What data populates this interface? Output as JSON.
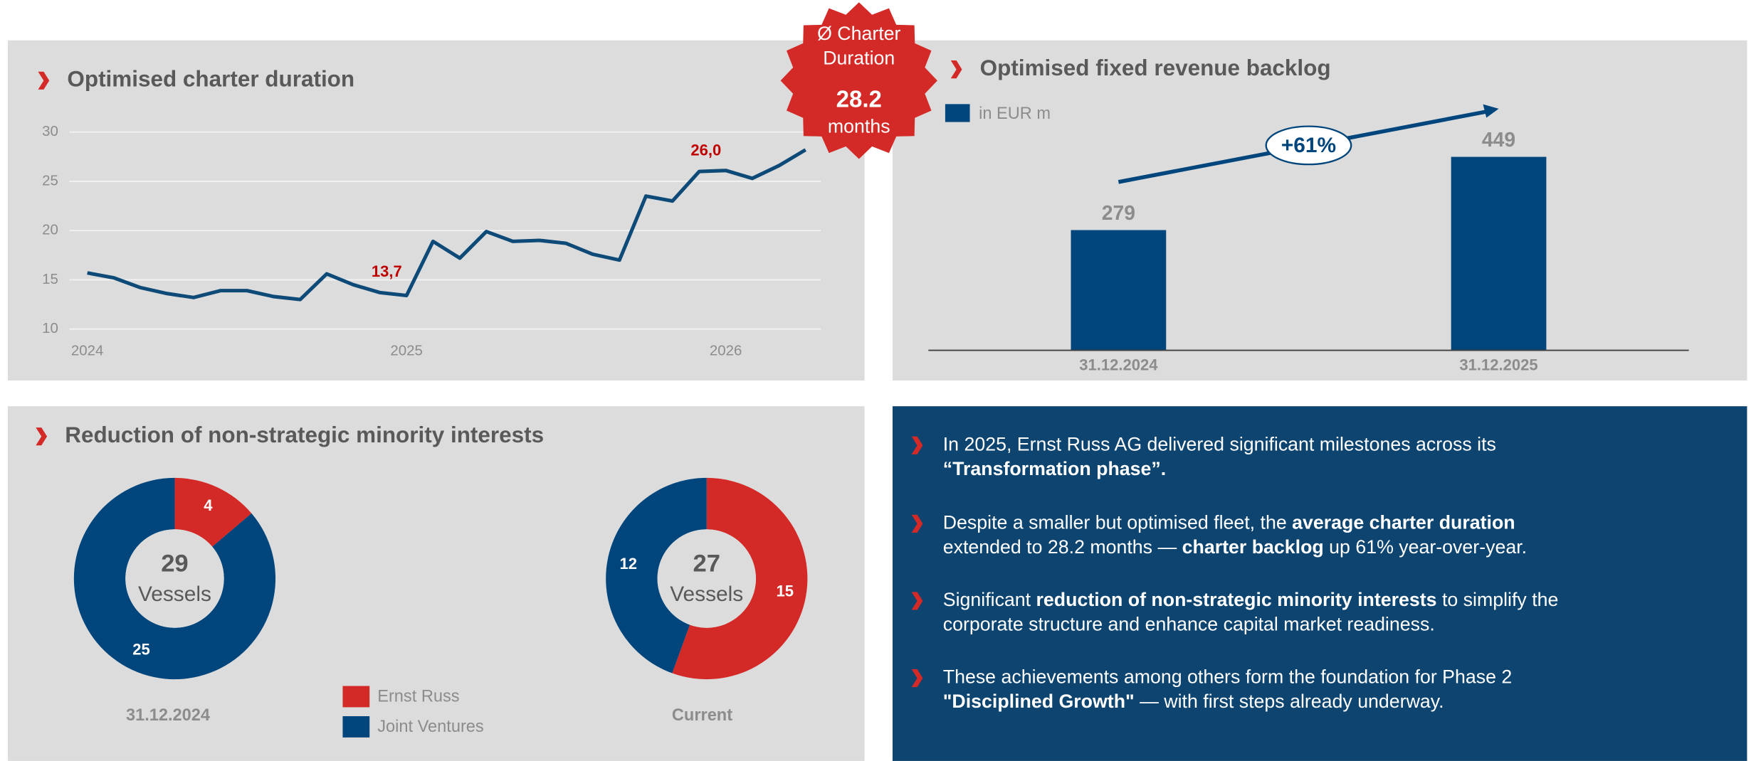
{
  "chart_data": [
    {
      "type": "line",
      "title": "Optimised charter duration",
      "x": [
        2024,
        2024.083,
        2024.167,
        2024.25,
        2024.333,
        2024.417,
        2024.5,
        2024.583,
        2024.667,
        2024.75,
        2024.833,
        2024.917,
        2025,
        2025.083,
        2025.167,
        2025.25,
        2025.333,
        2025.417,
        2025.5,
        2025.583,
        2025.667,
        2025.75,
        2025.833,
        2025.917,
        2026,
        2026.083,
        2026.167,
        2026.25
      ],
      "values": [
        15.7,
        15.2,
        14.2,
        13.6,
        13.2,
        13.9,
        13.9,
        13.3,
        13.0,
        15.6,
        14.5,
        13.7,
        13.4,
        18.9,
        17.2,
        19.9,
        18.9,
        19.0,
        18.7,
        17.6,
        17.0,
        23.5,
        23.0,
        26.0,
        26.1,
        25.3,
        26.6,
        28.2
      ],
      "value_labels": [
        null,
        null,
        null,
        null,
        null,
        null,
        null,
        null,
        null,
        null,
        null,
        "13,7",
        null,
        null,
        null,
        null,
        null,
        null,
        null,
        null,
        null,
        null,
        null,
        "26,0",
        null,
        null,
        null,
        null
      ],
      "color": "#0e4a78",
      "label_color": "#c00000",
      "xlim": [
        2023.944,
        2026.298
      ],
      "xticks": [
        2024,
        2025,
        2026
      ],
      "ylim": [
        10,
        30
      ],
      "yticks": [
        10,
        15,
        20,
        25,
        30
      ],
      "grid": true
    },
    {
      "type": "bar",
      "title": "Optimised fixed revenue backlog",
      "categories": [
        "31.12.2024",
        "31.12.2025"
      ],
      "series": [
        {
          "name": "in EUR m",
          "color": "#00457c",
          "values": [
            279,
            449
          ]
        }
      ],
      "ylim": [
        0,
        500
      ],
      "annotation": "+61%"
    },
    {
      "type": "donut",
      "title": "Reduction of non-strategic minority interests",
      "categories": [
        "Ernst Russ",
        "Joint Ventures"
      ],
      "colors": [
        "#d32a27",
        "#00457c"
      ],
      "pies": [
        {
          "label": "31.12.2024",
          "values": [
            4,
            25
          ],
          "center_value": 29,
          "center_label": "Vessels"
        },
        {
          "label": "Current",
          "values": [
            15,
            12
          ],
          "center_value": 27,
          "center_label": "Vessels"
        }
      ]
    }
  ],
  "badge": {
    "lines": [
      "Ø Charter",
      "Duration"
    ],
    "value": "28.2",
    "unit": "months"
  },
  "bullets": [
    [
      [
        {
          "text": "In 2025, Ernst Russ AG delivered significant milestones across its",
          "bold": false
        }
      ],
      [
        {
          "text": "“Transformation phase”.",
          "bold": true
        }
      ]
    ],
    [
      [
        {
          "text": "Despite a smaller but optimised fleet, the ",
          "bold": false
        },
        {
          "text": "average charter duration",
          "bold": true
        }
      ],
      [
        {
          "text": "extended to 28.2 months — ",
          "bold": false
        },
        {
          "text": "charter backlog",
          "bold": true
        },
        {
          "text": " up 61% year-over-year.",
          "bold": false
        }
      ]
    ],
    [
      [
        {
          "text": "Significant ",
          "bold": false
        },
        {
          "text": "reduction of non-strategic minority interests",
          "bold": true
        },
        {
          "text": " to simplify the",
          "bold": false
        }
      ],
      [
        {
          "text": "corporate structure and enhance capital market readiness.",
          "bold": false
        }
      ]
    ],
    [
      [
        {
          "text": "These achievements among others form the foundation for Phase 2",
          "bold": false
        }
      ],
      [
        {
          "text": "\"Disciplined Growth\"",
          "bold": true
        },
        {
          "text": " — with first steps already underway.",
          "bold": false
        }
      ]
    ]
  ]
}
